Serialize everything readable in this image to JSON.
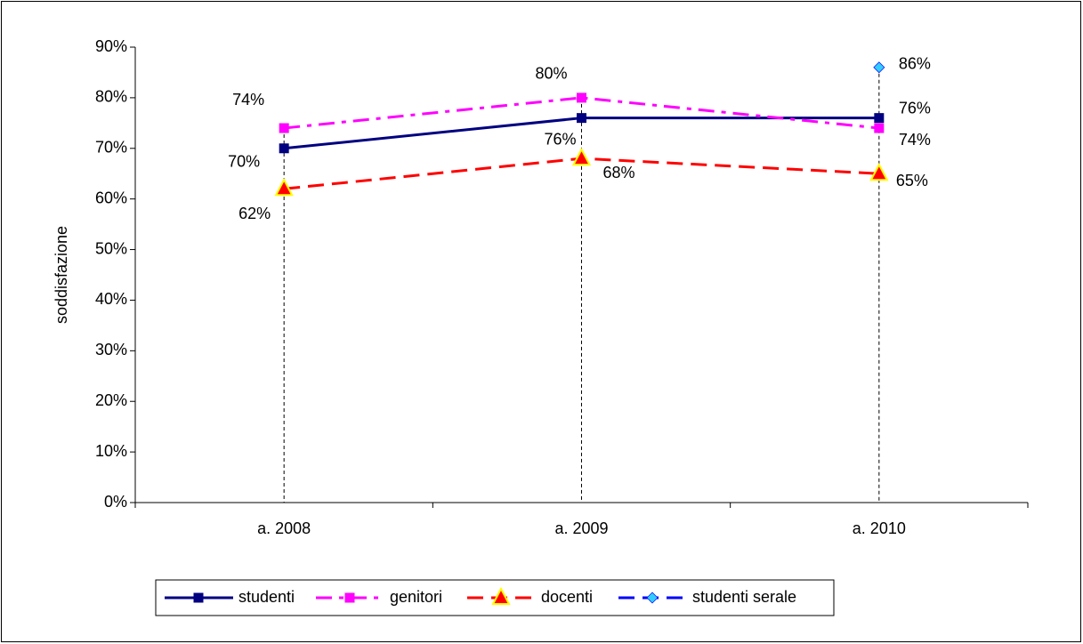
{
  "chart_data": {
    "type": "line",
    "y_label": "soddisfazione",
    "categories": [
      "a. 2008",
      "a. 2009",
      "a. 2010"
    ],
    "ylim": [
      0,
      90
    ],
    "yticks": [
      {
        "value": 0,
        "label": "0%"
      },
      {
        "value": 10,
        "label": "10%"
      },
      {
        "value": 20,
        "label": "20%"
      },
      {
        "value": 30,
        "label": "30%"
      },
      {
        "value": 40,
        "label": "40%"
      },
      {
        "value": 50,
        "label": "50%"
      },
      {
        "value": 60,
        "label": "60%"
      },
      {
        "value": 70,
        "label": "70%"
      },
      {
        "value": 80,
        "label": "80%"
      },
      {
        "value": 90,
        "label": "90%"
      }
    ],
    "grid": false,
    "drop_lines": true,
    "legend": "bottom",
    "series": [
      {
        "name": "studenti",
        "color": "#000080",
        "dash": "solid",
        "marker": "square",
        "marker_fill": "#000080",
        "values": [
          70,
          76,
          76
        ],
        "value_labels": [
          "70%",
          "76%",
          "76%"
        ]
      },
      {
        "name": "genitori",
        "color": "#ff00ff",
        "dash": "dashdot",
        "marker": "square",
        "marker_fill": "#ff00ff",
        "values": [
          74,
          80,
          74
        ],
        "value_labels": [
          "74%",
          "80%",
          "74%"
        ]
      },
      {
        "name": "docenti",
        "color": "#ff0000",
        "dash": "dash",
        "marker": "triangle",
        "marker_fill": "#ffff00",
        "values": [
          62,
          68,
          65
        ],
        "value_labels": [
          "62%",
          "68%",
          "65%"
        ]
      },
      {
        "name": "studenti serale",
        "color": "#0000ff",
        "dash": "dash",
        "marker": "diamond",
        "marker_fill": "#33ccff",
        "values": [
          null,
          null,
          86
        ],
        "value_labels": [
          null,
          null,
          "86%"
        ]
      }
    ]
  }
}
